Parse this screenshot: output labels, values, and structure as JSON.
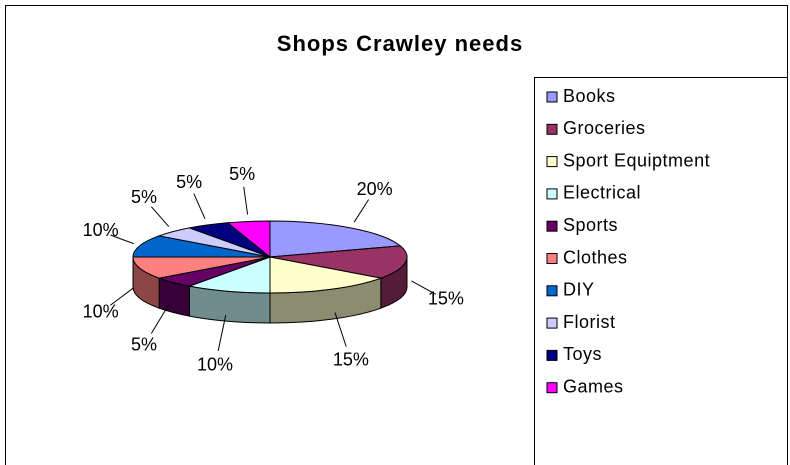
{
  "chart_data": {
    "type": "pie3d",
    "title": "Shops Crawley needs",
    "categories": [
      "Books",
      "Groceries",
      "Sport Equiptment",
      "Electrical",
      "Sports",
      "Clothes",
      "DIY",
      "Florist",
      "Toys",
      "Games"
    ],
    "values": [
      20,
      15,
      15,
      10,
      5,
      10,
      10,
      5,
      5,
      5
    ],
    "value_labels": [
      "20%",
      "15%",
      "15%",
      "10%",
      "5%",
      "10%",
      "10%",
      "5%",
      "5%",
      "5%"
    ],
    "colors": [
      "#9999ff",
      "#993366",
      "#ffffcc",
      "#ccffff",
      "#660066",
      "#ff8080",
      "#0066cc",
      "#ccccff",
      "#000080",
      "#ff00ff"
    ],
    "legend": "right"
  }
}
